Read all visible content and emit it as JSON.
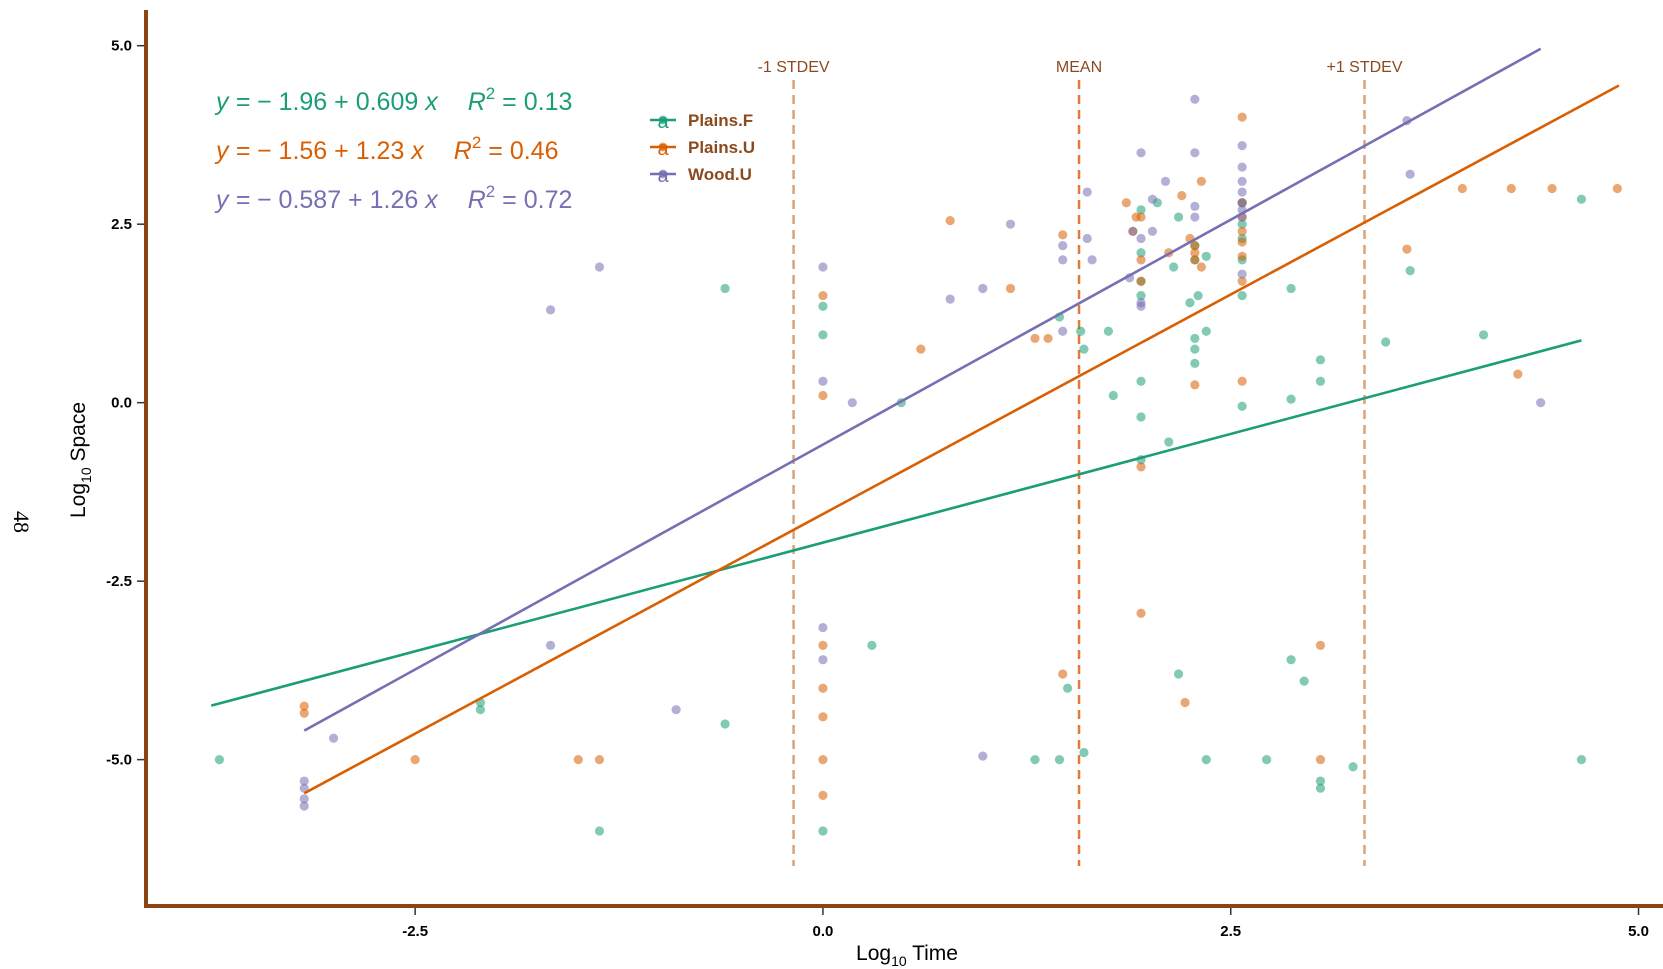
{
  "page_number": "48",
  "chart_data": {
    "type": "scatter",
    "xlabel": {
      "base": "Log",
      "sub": "10",
      "rest": " Time"
    },
    "ylabel": {
      "base": "Log",
      "sub": "10",
      "rest": " Space"
    },
    "xlim": [
      -4.15,
      5.15
    ],
    "ylim": [
      -7.05,
      5.5
    ],
    "x_ticks": [
      {
        "value": -2.5,
        "label": "-2.5"
      },
      {
        "value": 0.0,
        "label": "0.0"
      },
      {
        "value": 2.5,
        "label": "2.5"
      },
      {
        "value": 5.0,
        "label": "5.0"
      }
    ],
    "y_ticks": [
      {
        "value": 5.0,
        "label": "5.0"
      },
      {
        "value": 2.5,
        "label": "2.5"
      },
      {
        "value": 0.0,
        "label": "0.0"
      },
      {
        "value": -2.5,
        "label": "-2.5"
      },
      {
        "value": -5.0,
        "label": "-5.0"
      }
    ],
    "axis_color": "#8b4513",
    "reference_lines": [
      {
        "x": -0.18,
        "label": "-1 STDEV",
        "color": "#d9a37a"
      },
      {
        "x": 1.57,
        "label": "MEAN",
        "color": "#e07b39"
      },
      {
        "x": 3.32,
        "label": "+1 STDEV",
        "color": "#d9a37a"
      }
    ],
    "legend_glyph": "a",
    "legend_position": "top-left",
    "series": [
      {
        "name": "Plains.F",
        "color": "#1b9e77",
        "fit": {
          "intercept": -1.96,
          "slope": 0.609,
          "x_range": [
            -3.75,
            4.65
          ]
        },
        "equation": {
          "lhs": "y = ",
          "body": "− 1.96 + 0.609 ",
          "var": "x",
          "r": "R",
          "exp": "2",
          "rhs": " = 0.13"
        },
        "points": [
          [
            -3.7,
            -5.0
          ],
          [
            -2.1,
            -4.2
          ],
          [
            -2.1,
            -4.3
          ],
          [
            -1.37,
            -6.0
          ],
          [
            -0.6,
            1.6
          ],
          [
            -0.6,
            -4.5
          ],
          [
            0.0,
            1.35
          ],
          [
            0.0,
            0.95
          ],
          [
            0.0,
            -6.0
          ],
          [
            0.3,
            -3.4
          ],
          [
            0.48,
            0.0
          ],
          [
            1.3,
            -5.0
          ],
          [
            1.45,
            1.2
          ],
          [
            1.45,
            -5.0
          ],
          [
            1.5,
            -4.0
          ],
          [
            1.58,
            1.0
          ],
          [
            1.6,
            0.75
          ],
          [
            1.6,
            -4.9
          ],
          [
            1.75,
            1.0
          ],
          [
            1.78,
            0.1
          ],
          [
            1.95,
            2.1
          ],
          [
            1.95,
            1.7
          ],
          [
            1.95,
            1.5
          ],
          [
            1.95,
            0.3
          ],
          [
            1.95,
            -0.2
          ],
          [
            1.95,
            -0.8
          ],
          [
            1.95,
            2.7
          ],
          [
            2.05,
            2.8
          ],
          [
            2.12,
            -0.55
          ],
          [
            2.15,
            1.9
          ],
          [
            2.18,
            2.6
          ],
          [
            2.18,
            -3.8
          ],
          [
            2.25,
            1.4
          ],
          [
            2.28,
            2.2
          ],
          [
            2.28,
            2.0
          ],
          [
            2.28,
            0.9
          ],
          [
            2.28,
            0.75
          ],
          [
            2.28,
            0.55
          ],
          [
            2.3,
            1.5
          ],
          [
            2.35,
            1.0
          ],
          [
            2.35,
            2.05
          ],
          [
            2.35,
            -5.0
          ],
          [
            2.57,
            1.5
          ],
          [
            2.57,
            2.0
          ],
          [
            2.57,
            2.3
          ],
          [
            2.57,
            2.5
          ],
          [
            2.57,
            2.8
          ],
          [
            2.57,
            -0.05
          ],
          [
            2.72,
            -5.0
          ],
          [
            2.87,
            1.6
          ],
          [
            2.87,
            0.05
          ],
          [
            2.87,
            -3.6
          ],
          [
            2.95,
            -3.9
          ],
          [
            3.05,
            0.6
          ],
          [
            3.05,
            0.3
          ],
          [
            3.05,
            -5.3
          ],
          [
            3.05,
            -5.4
          ],
          [
            3.25,
            -5.1
          ],
          [
            3.45,
            0.85
          ],
          [
            3.6,
            1.85
          ],
          [
            4.05,
            0.95
          ],
          [
            4.65,
            2.85
          ],
          [
            4.65,
            -5.0
          ]
        ]
      },
      {
        "name": "Plains.U",
        "color": "#d95f02",
        "fit": {
          "intercept": -1.56,
          "slope": 1.23,
          "x_range": [
            -3.18,
            4.88
          ]
        },
        "equation": {
          "lhs": "y = ",
          "body": "− 1.56 + 1.23 ",
          "var": "x",
          "r": "R",
          "exp": "2",
          "rhs": " = 0.46"
        },
        "points": [
          [
            -3.18,
            -4.25
          ],
          [
            -3.18,
            -4.35
          ],
          [
            -2.5,
            -5.0
          ],
          [
            -1.5,
            -5.0
          ],
          [
            -1.37,
            -5.0
          ],
          [
            0.0,
            1.5
          ],
          [
            0.0,
            0.1
          ],
          [
            0.0,
            -3.4
          ],
          [
            0.0,
            -4.0
          ],
          [
            0.0,
            -4.4
          ],
          [
            0.0,
            -5.0
          ],
          [
            0.0,
            -5.5
          ],
          [
            0.6,
            0.75
          ],
          [
            0.78,
            2.55
          ],
          [
            1.15,
            1.6
          ],
          [
            1.3,
            0.9
          ],
          [
            1.38,
            0.9
          ],
          [
            1.47,
            2.35
          ],
          [
            1.47,
            -3.8
          ],
          [
            1.86,
            2.8
          ],
          [
            1.9,
            2.4
          ],
          [
            1.92,
            2.6
          ],
          [
            1.95,
            2.6
          ],
          [
            1.95,
            2.0
          ],
          [
            1.95,
            1.7
          ],
          [
            1.95,
            -0.9
          ],
          [
            1.95,
            -2.95
          ],
          [
            2.12,
            2.1
          ],
          [
            2.2,
            2.9
          ],
          [
            2.22,
            -4.2
          ],
          [
            2.25,
            2.3
          ],
          [
            2.28,
            2.2
          ],
          [
            2.28,
            2.1
          ],
          [
            2.28,
            2.0
          ],
          [
            2.28,
            0.25
          ],
          [
            2.32,
            1.9
          ],
          [
            2.32,
            3.1
          ],
          [
            2.57,
            4.0
          ],
          [
            2.57,
            2.8
          ],
          [
            2.57,
            2.6
          ],
          [
            2.57,
            2.4
          ],
          [
            2.57,
            2.25
          ],
          [
            2.57,
            2.05
          ],
          [
            2.57,
            1.7
          ],
          [
            2.57,
            0.3
          ],
          [
            3.05,
            -3.4
          ],
          [
            3.05,
            -5.0
          ],
          [
            3.58,
            2.15
          ],
          [
            3.92,
            3.0
          ],
          [
            4.22,
            3.0
          ],
          [
            4.47,
            3.0
          ],
          [
            4.26,
            0.4
          ],
          [
            4.87,
            3.0
          ]
        ]
      },
      {
        "name": "Wood.U",
        "color": "#7570b3",
        "fit": {
          "intercept": -0.587,
          "slope": 1.26,
          "x_range": [
            -3.18,
            4.4
          ]
        },
        "equation": {
          "lhs": "y = ",
          "body": "− 0.587 + 1.26 ",
          "var": "x",
          "r": "R",
          "exp": "2",
          "rhs": " = 0.72"
        },
        "points": [
          [
            -3.18,
            -5.3
          ],
          [
            -3.18,
            -5.4
          ],
          [
            -3.18,
            -5.55
          ],
          [
            -3.18,
            -5.65
          ],
          [
            -3.0,
            -4.7
          ],
          [
            -1.67,
            1.3
          ],
          [
            -1.67,
            -3.4
          ],
          [
            -1.37,
            1.9
          ],
          [
            -0.9,
            -4.3
          ],
          [
            0.0,
            1.9
          ],
          [
            0.0,
            0.3
          ],
          [
            0.0,
            -3.15
          ],
          [
            0.0,
            -3.6
          ],
          [
            0.18,
            0.0
          ],
          [
            0.78,
            1.45
          ],
          [
            0.98,
            1.6
          ],
          [
            0.98,
            -4.95
          ],
          [
            1.15,
            2.5
          ],
          [
            1.47,
            2.2
          ],
          [
            1.47,
            2.0
          ],
          [
            1.47,
            1.0
          ],
          [
            1.62,
            2.95
          ],
          [
            1.62,
            2.3
          ],
          [
            1.65,
            2.0
          ],
          [
            1.88,
            1.75
          ],
          [
            1.9,
            2.4
          ],
          [
            1.95,
            3.5
          ],
          [
            1.95,
            2.3
          ],
          [
            1.95,
            1.35
          ],
          [
            1.95,
            1.4
          ],
          [
            2.02,
            2.85
          ],
          [
            2.02,
            2.4
          ],
          [
            2.1,
            3.1
          ],
          [
            2.28,
            4.25
          ],
          [
            2.28,
            3.5
          ],
          [
            2.28,
            2.75
          ],
          [
            2.28,
            2.6
          ],
          [
            2.57,
            3.6
          ],
          [
            2.57,
            3.3
          ],
          [
            2.57,
            3.1
          ],
          [
            2.57,
            2.95
          ],
          [
            2.57,
            2.8
          ],
          [
            2.57,
            2.7
          ],
          [
            2.57,
            2.6
          ],
          [
            2.57,
            1.8
          ],
          [
            3.58,
            3.95
          ],
          [
            3.6,
            3.2
          ],
          [
            4.4,
            0.0
          ]
        ]
      }
    ]
  }
}
